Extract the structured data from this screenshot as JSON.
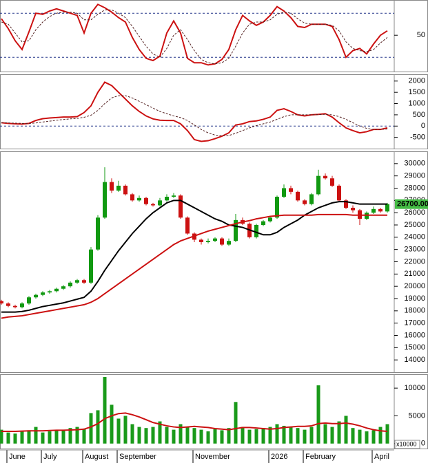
{
  "chart_data": [
    {
      "type": "line",
      "ylim": [
        17,
        82
      ],
      "yticks": [
        50
      ],
      "ref_lines": [
        30,
        70
      ],
      "series": [
        {
          "color": "#cc1111",
          "dash": false,
          "values": [
            65,
            56,
            45,
            37,
            53,
            70,
            69,
            72,
            74,
            72,
            70,
            68,
            52,
            70,
            78,
            75,
            71,
            66,
            62,
            48,
            37,
            29,
            27,
            31,
            52,
            63,
            52,
            29,
            25,
            25,
            23,
            24,
            28,
            37,
            55,
            68,
            63,
            59,
            62,
            68,
            76,
            72,
            66,
            58,
            57,
            60,
            60,
            60,
            58,
            46,
            30,
            36,
            38,
            33,
            42,
            50,
            54
          ]
        },
        {
          "color": "#552222",
          "dash": true,
          "values": [
            62,
            60,
            52,
            44,
            45,
            55,
            62,
            67,
            70,
            71,
            71,
            70,
            64,
            64,
            69,
            73,
            73,
            70,
            66,
            58,
            49,
            40,
            33,
            30,
            38,
            50,
            55,
            46,
            36,
            28,
            25,
            24,
            25,
            29,
            40,
            52,
            60,
            62,
            62,
            64,
            69,
            71,
            70,
            65,
            61,
            60,
            60,
            60,
            59,
            54,
            44,
            38,
            36,
            35,
            37,
            43,
            48
          ]
        }
      ]
    },
    {
      "type": "line",
      "ylim": [
        -1000,
        2300
      ],
      "yticks": [
        -500,
        0,
        500,
        1000,
        1500,
        2000
      ],
      "ref_lines": [
        0
      ],
      "series": [
        {
          "color": "#cc1111",
          "dash": false,
          "values": [
            150,
            120,
            100,
            90,
            120,
            250,
            330,
            360,
            380,
            400,
            400,
            420,
            600,
            900,
            1500,
            1950,
            1800,
            1500,
            1200,
            900,
            650,
            450,
            320,
            260,
            250,
            250,
            100,
            -200,
            -600,
            -680,
            -650,
            -560,
            -450,
            -300,
            50,
            100,
            200,
            230,
            300,
            400,
            700,
            770,
            650,
            500,
            450,
            500,
            520,
            550,
            400,
            150,
            -80,
            -200,
            -300,
            -250,
            -150,
            -150,
            -80
          ]
        },
        {
          "color": "#552222",
          "dash": true,
          "values": [
            150,
            140,
            130,
            120,
            115,
            140,
            180,
            220,
            260,
            290,
            320,
            340,
            390,
            480,
            700,
            1000,
            1250,
            1350,
            1350,
            1250,
            1100,
            950,
            800,
            650,
            550,
            450,
            380,
            250,
            50,
            -150,
            -300,
            -400,
            -430,
            -420,
            -320,
            -200,
            -80,
            20,
            100,
            180,
            300,
            420,
            500,
            500,
            500,
            500,
            510,
            520,
            500,
            420,
            300,
            150,
            0,
            -100,
            -150,
            -150,
            -130
          ]
        }
      ]
    },
    {
      "type": "candlestick",
      "ylim": [
        13000,
        31000
      ],
      "yticks": [
        14000,
        15000,
        16000,
        17000,
        18000,
        19000,
        20000,
        21000,
        22000,
        23000,
        24000,
        25000,
        26000,
        27000,
        28000,
        29000,
        30000
      ],
      "up_color": "#119911",
      "down_color": "#cc1111",
      "open": [
        18800,
        18600,
        18400,
        18300,
        18600,
        19100,
        19300,
        19500,
        19600,
        19800,
        20000,
        20300,
        20500,
        20300,
        23000,
        25600,
        28500,
        27800,
        28200,
        27500,
        27000,
        27200,
        26700,
        26600,
        27000,
        27300,
        27400,
        25600,
        24300,
        23800,
        23600,
        23700,
        23900,
        23400,
        23700,
        25400,
        25100,
        24000,
        25000,
        25300,
        25600,
        27300,
        28000,
        27700,
        27000,
        26700,
        27500,
        29000,
        28800,
        28200,
        27000,
        26400,
        26200,
        25500,
        26000,
        26300,
        26100
      ],
      "high": [
        18900,
        18700,
        18500,
        18700,
        19200,
        19400,
        19600,
        19700,
        19900,
        20100,
        20400,
        20600,
        20600,
        23200,
        25800,
        29700,
        28800,
        28600,
        28300,
        27600,
        27400,
        27300,
        26800,
        27200,
        27500,
        27600,
        27500,
        25700,
        24400,
        23900,
        23900,
        24000,
        24000,
        23900,
        25900,
        25600,
        25200,
        25100,
        25400,
        25700,
        27400,
        28300,
        28200,
        27800,
        27100,
        27600,
        29500,
        29200,
        29000,
        28300,
        27100,
        26600,
        26300,
        26100,
        26500,
        26400,
        26800
      ],
      "low": [
        18500,
        18300,
        18200,
        18200,
        18500,
        19000,
        19200,
        19400,
        19500,
        19700,
        19900,
        20200,
        20200,
        20200,
        22900,
        25500,
        27600,
        27700,
        27400,
        26900,
        26900,
        26600,
        26500,
        26500,
        26900,
        27200,
        25500,
        24200,
        23600,
        23400,
        23500,
        23600,
        23300,
        23300,
        23600,
        25000,
        23900,
        23900,
        24900,
        25200,
        25500,
        27200,
        27500,
        26900,
        26600,
        26600,
        27400,
        28700,
        28100,
        26900,
        26300,
        26000,
        25000,
        25400,
        25900,
        26000,
        26000
      ],
      "close": [
        18600,
        18400,
        18300,
        18600,
        19100,
        19300,
        19500,
        19600,
        19800,
        20000,
        20300,
        20500,
        20300,
        23000,
        25600,
        28500,
        27800,
        28200,
        27500,
        27000,
        27200,
        26700,
        26600,
        27000,
        27300,
        27400,
        25600,
        24300,
        23800,
        23600,
        23700,
        23900,
        23400,
        23700,
        25400,
        25100,
        24000,
        25000,
        25300,
        25600,
        27300,
        28000,
        27700,
        27000,
        26700,
        27500,
        29000,
        28800,
        28200,
        27000,
        26400,
        26200,
        25500,
        26000,
        26300,
        26100,
        26700
      ],
      "series": [
        {
          "color": "#000000",
          "dash": false,
          "values": [
            17900,
            17900,
            17900,
            17950,
            18050,
            18200,
            18350,
            18450,
            18550,
            18650,
            18800,
            18950,
            19100,
            19600,
            20400,
            21300,
            22100,
            22900,
            23600,
            24300,
            24900,
            25500,
            26000,
            26400,
            26800,
            27000,
            27000,
            26700,
            26400,
            26100,
            25800,
            25500,
            25300,
            25000,
            24900,
            24800,
            24600,
            24400,
            24200,
            24200,
            24400,
            24800,
            25100,
            25400,
            25800,
            26100,
            26400,
            26600,
            26800,
            26900,
            26900,
            26800,
            26700,
            26700,
            26700,
            26700,
            26700
          ]
        },
        {
          "color": "#cc1111",
          "dash": false,
          "values": [
            17400,
            17500,
            17550,
            17600,
            17700,
            17800,
            17900,
            18000,
            18100,
            18200,
            18300,
            18400,
            18500,
            18700,
            19000,
            19400,
            19800,
            20200,
            20600,
            21000,
            21400,
            21800,
            22200,
            22600,
            23000,
            23400,
            23700,
            23900,
            24100,
            24300,
            24500,
            24650,
            24800,
            24950,
            25100,
            25250,
            25350,
            25500,
            25600,
            25700,
            25750,
            25800,
            25800,
            25800,
            25800,
            25800,
            25850,
            25850,
            25850,
            25850,
            25850,
            25800,
            25800,
            25800,
            25800,
            25800,
            25800
          ]
        }
      ],
      "last_price": {
        "value": 26700,
        "label": "26700.00"
      }
    },
    {
      "type": "bar",
      "ylim": [
        -900,
        12500
      ],
      "yticks": [
        0,
        5000,
        10000
      ],
      "color": "#1a9a1a",
      "unit": "x10000",
      "values": [
        2500,
        2000,
        1800,
        2200,
        2400,
        3000,
        2000,
        2200,
        2500,
        2400,
        2800,
        3000,
        2600,
        5500,
        6000,
        12000,
        7000,
        4500,
        5000,
        3500,
        3000,
        2800,
        3000,
        4000,
        3000,
        2500,
        3500,
        3000,
        2800,
        2500,
        2200,
        2600,
        2400,
        2800,
        7500,
        3000,
        2500,
        2600,
        2800,
        3000,
        3500,
        3200,
        3000,
        2800,
        2500,
        3000,
        10500,
        3500,
        3000,
        4000,
        5000,
        2800,
        2500,
        2200,
        2400,
        3000,
        3500
      ],
      "series": [
        {
          "color": "#cc1111",
          "dash": false,
          "values": [
            2200,
            2200,
            2200,
            2250,
            2300,
            2300,
            2300,
            2350,
            2400,
            2400,
            2450,
            2500,
            2600,
            3000,
            3600,
            4500,
            5000,
            5400,
            5500,
            5200,
            4800,
            4300,
            3800,
            3500,
            3200,
            3000,
            2900,
            3000,
            3100,
            3000,
            2900,
            2700,
            2600,
            2500,
            2700,
            2900,
            2900,
            2800,
            2700,
            2600,
            2700,
            2900,
            3000,
            3100,
            3100,
            3200,
            3600,
            3700,
            3600,
            3600,
            3700,
            3500,
            3200,
            2800,
            2500,
            2300,
            2200
          ]
        }
      ],
      "categories": [
        null,
        "June",
        null,
        null,
        null,
        null,
        "July",
        null,
        null,
        null,
        null,
        null,
        "August",
        null,
        null,
        null,
        null,
        "September",
        null,
        null,
        null,
        null,
        null,
        null,
        null,
        null,
        null,
        null,
        "November",
        null,
        null,
        null,
        null,
        null,
        null,
        null,
        null,
        null,
        null,
        "2026",
        null,
        null,
        null,
        null,
        "February",
        null,
        null,
        null,
        null,
        null,
        null,
        null,
        null,
        null,
        "April",
        null,
        null
      ]
    }
  ]
}
